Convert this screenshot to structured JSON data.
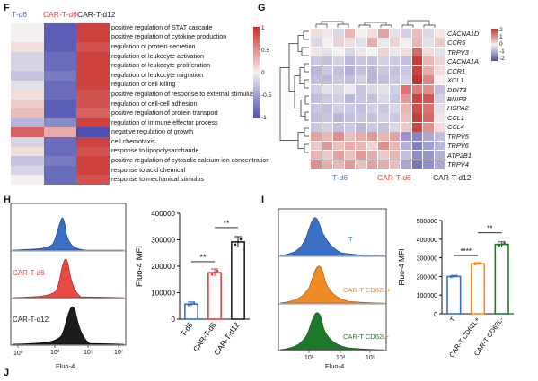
{
  "panel_letters": {
    "F": "F",
    "G": "G",
    "H": "H",
    "I": "I",
    "J": "J"
  },
  "colors": {
    "td6": "#4a72c4",
    "cart_d6": "#e0433a",
    "cart_d12": "#222222",
    "orange": "#f08a24",
    "green": "#1e7a2a",
    "blue": "#3a6fc4"
  },
  "panelF": {
    "groups": [
      "T-d6",
      "CAR-T-d6",
      "CAR-T-d12"
    ],
    "terms": [
      "positive regulation of STAT cascade",
      "positive regulation of cytokine production",
      "regulation of protein secretion",
      "regulation of leukocyte activation",
      "regulation of leukocyte proliferation",
      "regulation of leukocyte migration",
      "regulation of cell killing",
      "positive regulation of response to external stimulus",
      "regulation of cell-cell adhesion",
      "positive regulation of protein transport",
      "regulation of immune effector process",
      "negative regulation of growth",
      "cell chemotaxis",
      "response to lipopolysaccharide",
      "positive regulation of cytosolic calcium ion concentration",
      "response to acid chemical",
      "response to mechanical stimulus"
    ],
    "values": [
      [
        0.0,
        -1.0,
        1.0
      ],
      [
        0.0,
        -1.0,
        1.0
      ],
      [
        0.1,
        -1.0,
        0.9
      ],
      [
        -0.2,
        -0.9,
        1.0
      ],
      [
        -0.2,
        -0.9,
        1.0
      ],
      [
        -0.3,
        -0.8,
        1.0
      ],
      [
        -0.1,
        -0.9,
        1.0
      ],
      [
        0.1,
        -0.9,
        0.9
      ],
      [
        0.2,
        -1.0,
        0.9
      ],
      [
        0.3,
        -1.0,
        0.8
      ],
      [
        -0.4,
        -0.7,
        1.0
      ],
      [
        0.8,
        0.4,
        -1.1
      ],
      [
        -0.2,
        -0.9,
        1.0
      ],
      [
        0.1,
        -0.9,
        0.9
      ],
      [
        -0.3,
        -0.8,
        1.0
      ],
      [
        -0.2,
        -0.9,
        1.0
      ],
      [
        0.0,
        -0.9,
        0.9
      ]
    ],
    "legend_ticks": [
      "1",
      "0.5",
      "0",
      "-0.5",
      "-1"
    ]
  },
  "panelG": {
    "genes": [
      "CACNA1D",
      "CCR5",
      "TRPV3",
      "CACNA1A",
      "CCR1",
      "XCL1",
      "DDIT3",
      "BNIP3",
      "HSPA2",
      "CCL1",
      "CCL4",
      "TRPV5",
      "TRPV6",
      "ATP2B1",
      "TRPV4"
    ],
    "groups": [
      "T-d6",
      "CAR-T-d6",
      "CAR-T-d12"
    ],
    "values": [
      [
        0.2,
        0.1,
        -0.3,
        0.6,
        0.0,
        0.2,
        0.8,
        -0.2,
        -0.4,
        0.5,
        -0.3,
        0.1
      ],
      [
        -0.3,
        0.0,
        0.3,
        0.2,
        -0.2,
        0.7,
        -0.1,
        0.3,
        0.0,
        0.6,
        -0.2,
        0.4
      ],
      [
        0.1,
        -0.2,
        0.0,
        -0.3,
        0.1,
        0.0,
        0.3,
        -0.1,
        0.2,
        1.4,
        0.2,
        -0.2
      ],
      [
        -0.5,
        -0.6,
        -0.4,
        -0.7,
        -0.5,
        -0.6,
        -0.4,
        -0.5,
        -0.6,
        1.9,
        0.6,
        0.3
      ],
      [
        -0.7,
        -0.5,
        -0.6,
        -0.8,
        -0.6,
        -0.7,
        -0.5,
        -0.6,
        -0.5,
        1.8,
        0.7,
        0.2
      ],
      [
        -0.6,
        -0.7,
        -0.5,
        -0.6,
        -0.4,
        -0.7,
        -0.6,
        -0.5,
        -0.4,
        2.0,
        1.1,
        0.0
      ],
      [
        -0.4,
        -0.2,
        -0.3,
        -0.1,
        -0.5,
        -0.3,
        -0.2,
        -0.4,
        1.3,
        1.2,
        1.0,
        -0.6
      ],
      [
        -0.6,
        -0.5,
        -0.4,
        -0.7,
        -0.5,
        -0.6,
        -0.3,
        -0.5,
        0.9,
        1.8,
        1.6,
        -0.4
      ],
      [
        -0.5,
        -0.6,
        -0.4,
        -0.5,
        -0.6,
        -0.4,
        -0.5,
        -0.3,
        0.6,
        1.7,
        1.3,
        -0.2
      ],
      [
        -0.6,
        -0.5,
        -0.7,
        -0.6,
        -0.5,
        -0.6,
        -0.4,
        -0.5,
        0.5,
        1.9,
        1.4,
        0.1
      ],
      [
        -0.5,
        -0.4,
        -0.6,
        -0.5,
        -0.7,
        -0.5,
        -0.6,
        -0.3,
        0.4,
        1.8,
        1.0,
        0.2
      ],
      [
        0.8,
        0.6,
        1.0,
        0.5,
        0.7,
        0.9,
        0.6,
        0.8,
        -1.1,
        -1.3,
        -0.9,
        -0.6
      ],
      [
        0.4,
        0.9,
        0.5,
        0.7,
        0.6,
        0.3,
        1.0,
        0.6,
        -0.8,
        -1.4,
        -1.0,
        -0.7
      ],
      [
        0.6,
        0.4,
        0.8,
        0.5,
        0.9,
        0.7,
        0.4,
        0.6,
        -0.6,
        -1.2,
        -1.1,
        -0.8
      ],
      [
        1.0,
        0.7,
        0.6,
        0.9,
        0.5,
        0.8,
        0.7,
        0.5,
        -0.9,
        -1.5,
        -1.2,
        -0.9
      ]
    ],
    "legend_ticks": [
      "2",
      "1",
      "0",
      "-1",
      "-2"
    ]
  },
  "panelH": {
    "histogram_labels": [
      "T-d6",
      "CAR-T-d6",
      "CAR-T-d12"
    ],
    "xaxis_label": "Fluo-4",
    "xticks": [
      "10⁰",
      "10³",
      "10⁵",
      "10⁷"
    ],
    "chart_data": {
      "type": "bar",
      "ylabel": "Fluo-4 MFI",
      "categories": [
        "T-d6",
        "CAR-T-d6",
        "CAR-T-d12"
      ],
      "values": [
        57000,
        176000,
        292000
      ],
      "errors": [
        8000,
        14000,
        20000
      ],
      "ylim": [
        0,
        400000
      ],
      "yticks": [
        "0",
        "100000",
        "200000",
        "300000",
        "400000"
      ],
      "significance": [
        "**",
        "**"
      ]
    }
  },
  "panelI": {
    "histogram_labels": [
      "T",
      "CAR-T CD62L+",
      "CAR-T CD62L-"
    ],
    "xaxis_label": "Fluo-4",
    "xticks": [
      "10¹",
      "10³",
      "10⁵"
    ],
    "chart_data": {
      "type": "bar",
      "ylabel": "Fluo-4 MFI",
      "categories": [
        "T",
        "CAR-T CD62L+",
        "CAR-T CD62L-"
      ],
      "values": [
        200000,
        268000,
        372000
      ],
      "errors": [
        6000,
        6000,
        14000
      ],
      "ylim": [
        0,
        500000
      ],
      "yticks": [
        "0",
        "100000",
        "200000",
        "300000",
        "400000",
        "500000"
      ],
      "significance": [
        "****",
        "**"
      ]
    }
  }
}
